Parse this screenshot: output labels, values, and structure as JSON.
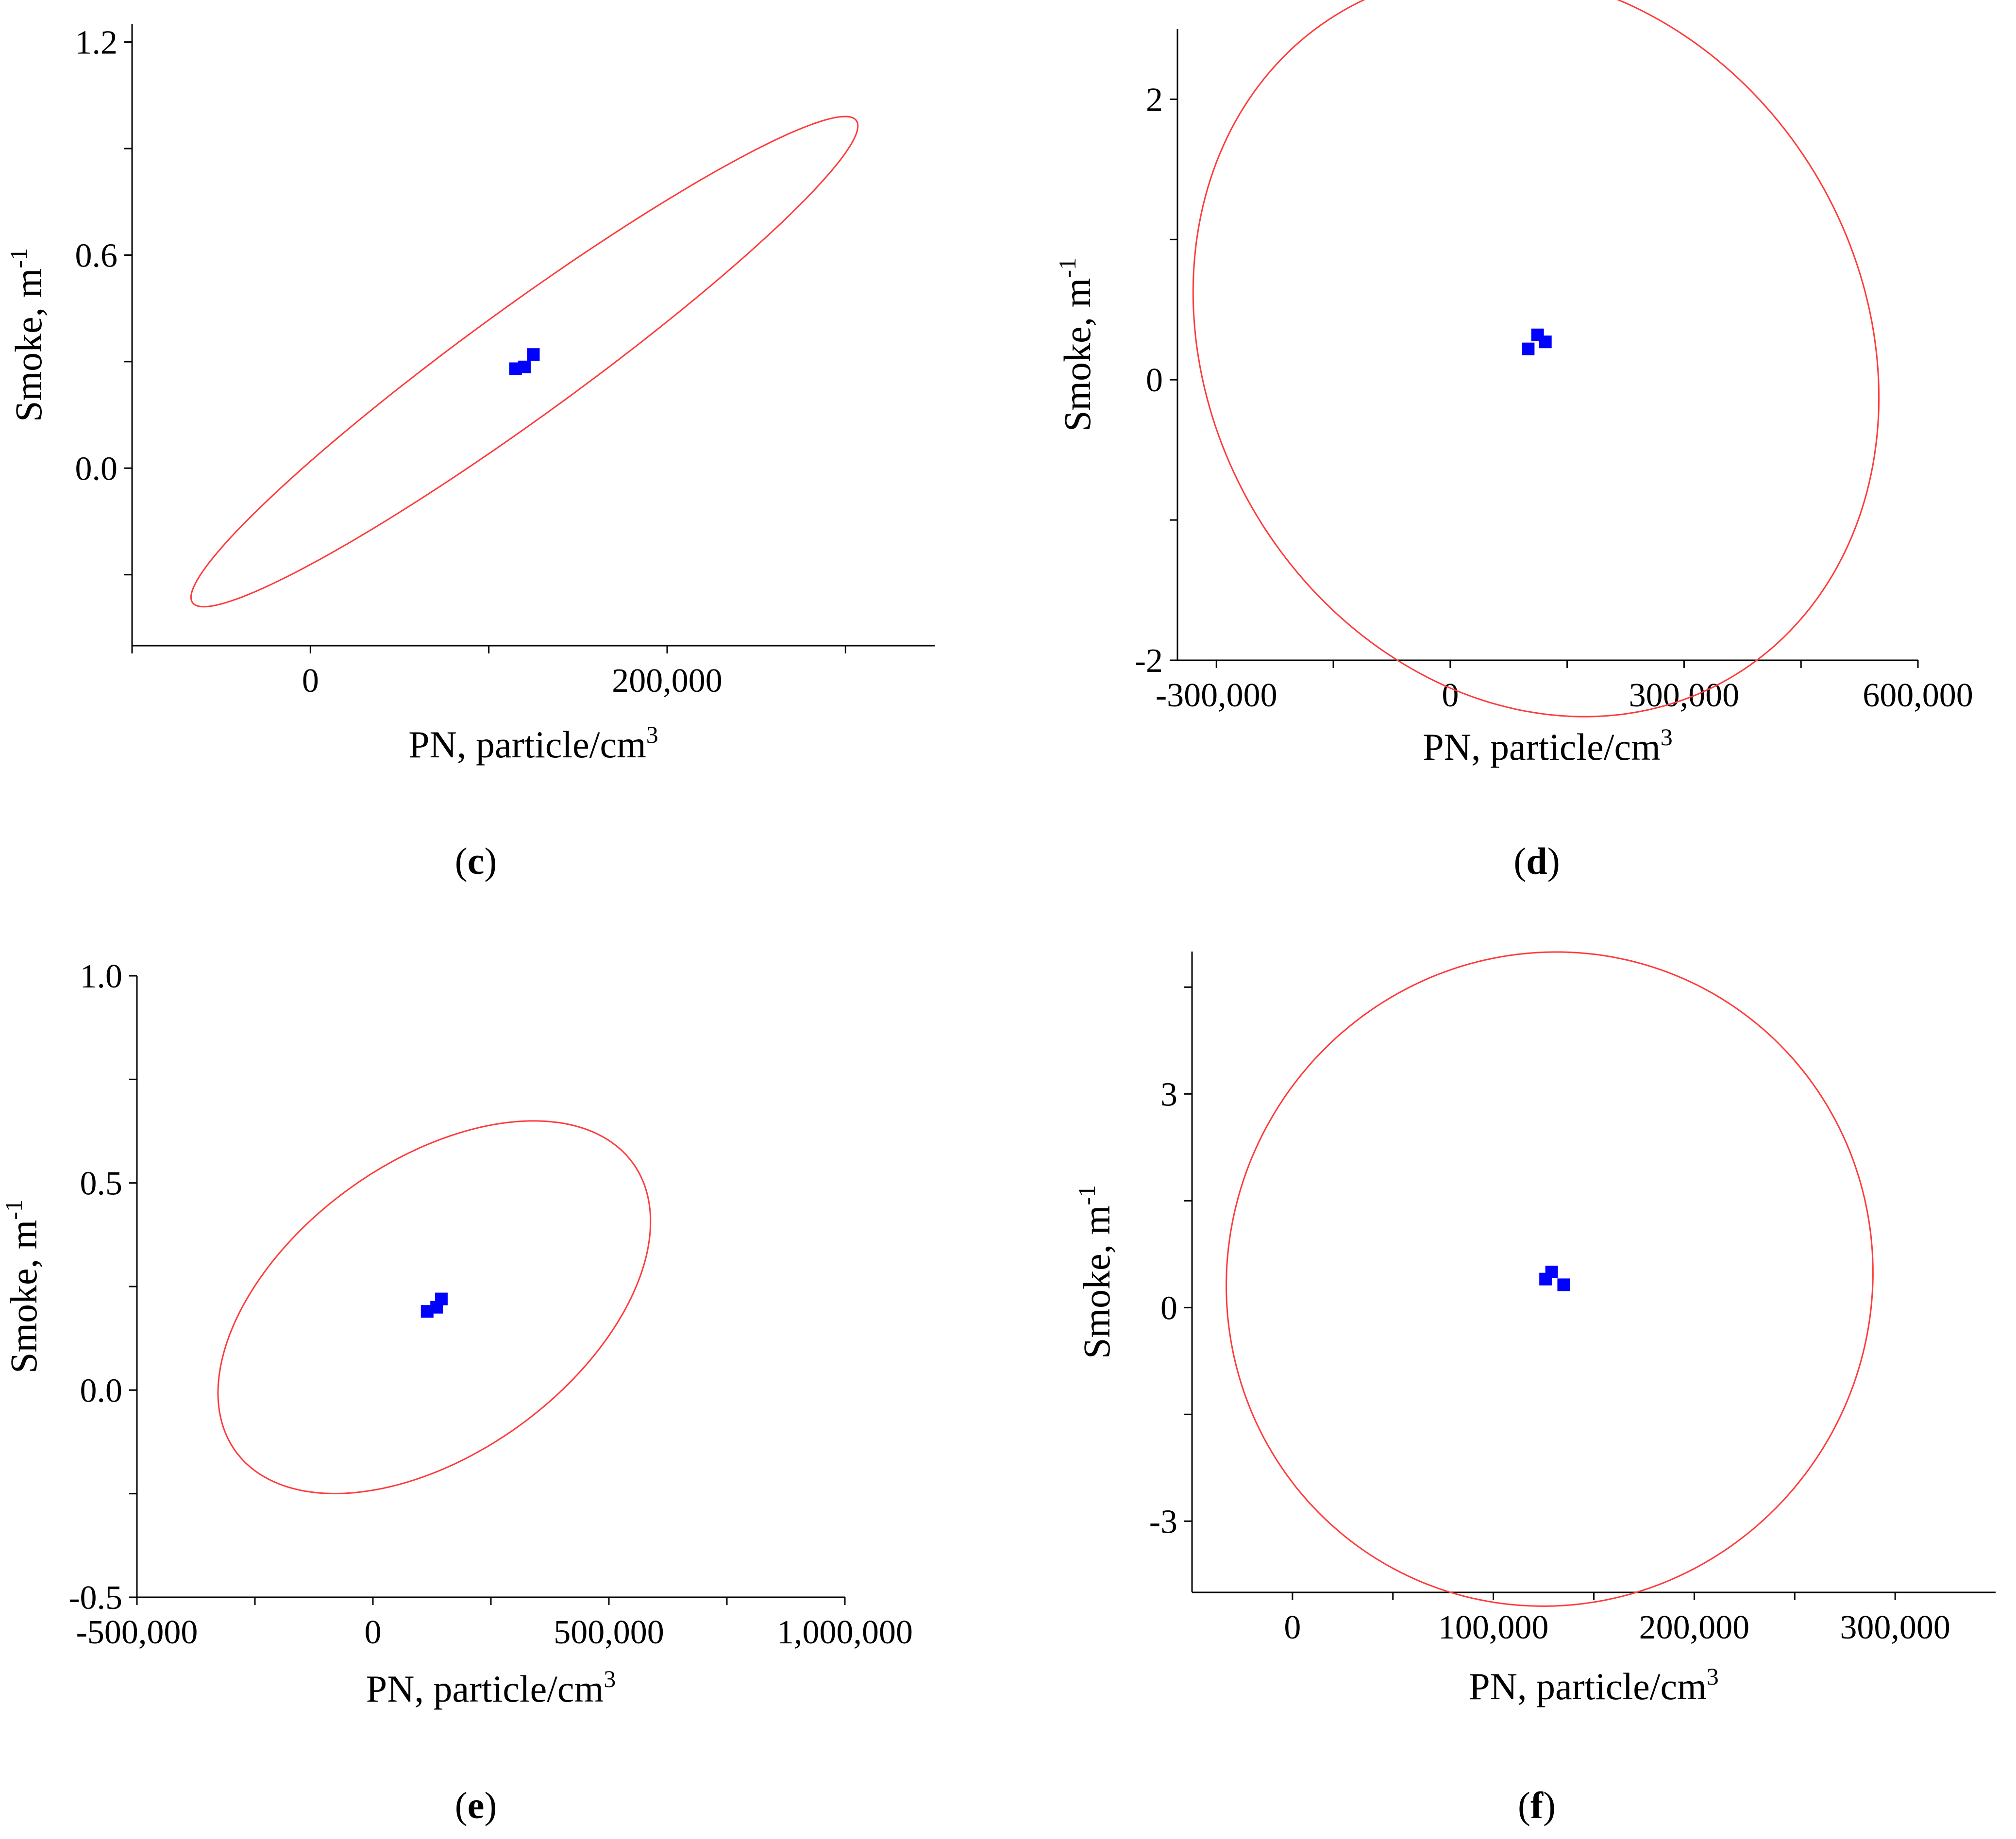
{
  "figure": {
    "colors": {
      "ellipse": "#ff3b3b",
      "points": "#0000ff",
      "axis": "#000000"
    }
  },
  "chart_data": [
    {
      "panel": "c",
      "type": "scatter",
      "caption": {
        "open": "(",
        "letter": "c",
        "close": ")"
      },
      "xlabel": "PN, particle/cm",
      "xlabel_sup": "3",
      "ylabel": "Smoke, m",
      "ylabel_sup": "-1",
      "xlim": [
        -100000,
        350000
      ],
      "ylim": [
        -0.5,
        1.25
      ],
      "xticks": [
        {
          "value": 0,
          "label": "0"
        },
        {
          "value": 200000,
          "label": "200,000"
        }
      ],
      "x_minor_ticks": [
        -100000,
        100000,
        300000
      ],
      "yticks": [
        {
          "value": 0.0,
          "label": "0.0"
        },
        {
          "value": 0.6,
          "label": "0.6"
        },
        {
          "value": 1.2,
          "label": "1.2"
        }
      ],
      "y_minor_ticks": [
        -0.3,
        0.3,
        0.9
      ],
      "ellipse": {
        "cx": 120000,
        "cy": 0.3,
        "rx": 230000,
        "ry": 0.07,
        "angle_deg": 36
      },
      "points": [
        [
          115000,
          0.28
        ],
        [
          120000,
          0.285
        ],
        [
          125000,
          0.32
        ]
      ]
    },
    {
      "panel": "d",
      "type": "scatter",
      "caption": {
        "open": "(",
        "letter": "d",
        "close": ")"
      },
      "xlabel": "PN, particle/cm",
      "xlabel_sup": "3",
      "ylabel": "Smoke, m",
      "ylabel_sup": "-1",
      "xlim": [
        -350000,
        600000
      ],
      "ylim": [
        -2.0,
        2.5
      ],
      "xticks": [
        {
          "value": -300000,
          "label": "-300,000"
        },
        {
          "value": 0,
          "label": "0"
        },
        {
          "value": 300000,
          "label": "300,000"
        },
        {
          "value": 600000,
          "label": "600,000"
        }
      ],
      "x_minor_ticks": [
        -150000,
        150000,
        450000
      ],
      "yticks": [
        {
          "value": -2,
          "label": "-2"
        },
        {
          "value": 0,
          "label": "0"
        },
        {
          "value": 2,
          "label": "2"
        }
      ],
      "y_minor_ticks": [
        -1,
        1
      ],
      "ellipse": {
        "cx": 110000,
        "cy": 0.25,
        "rx": 420000,
        "ry": 1.25,
        "angle_deg": 30
      },
      "points": [
        [
          100000,
          0.22
        ],
        [
          112000,
          0.32
        ],
        [
          122000,
          0.27
        ]
      ]
    },
    {
      "panel": "e",
      "type": "scatter",
      "caption": {
        "open": "(",
        "letter": "e",
        "close": ")"
      },
      "xlabel": "PN, particle/cm",
      "xlabel_sup": "3",
      "ylabel": "Smoke, m",
      "ylabel_sup": "-1",
      "xlim": [
        -500000,
        1000000
      ],
      "ylim": [
        -0.5,
        1.0
      ],
      "xticks": [
        {
          "value": -500000,
          "label": "-500,000"
        },
        {
          "value": 0,
          "label": "0"
        },
        {
          "value": 500000,
          "label": "500,000"
        },
        {
          "value": 1000000,
          "label": "1,000,000"
        }
      ],
      "x_minor_ticks": [
        -250000,
        250000,
        750000
      ],
      "yticks": [
        {
          "value": -0.5,
          "label": "-0.5"
        },
        {
          "value": 0.0,
          "label": "0.0"
        },
        {
          "value": 0.5,
          "label": "0.5"
        },
        {
          "value": 1.0,
          "label": "1.0"
        }
      ],
      "y_minor_ticks": [
        -0.25,
        0.25,
        0.75
      ],
      "ellipse": {
        "cx": 130000,
        "cy": 0.2,
        "rx": 520000,
        "ry": 0.16,
        "angle_deg": 36
      },
      "points": [
        [
          115000,
          0.19
        ],
        [
          135000,
          0.2
        ],
        [
          145000,
          0.22
        ]
      ]
    },
    {
      "panel": "f",
      "type": "scatter",
      "caption": {
        "open": "(",
        "letter": "f",
        "close": ")"
      },
      "xlabel": "PN, particle/cm",
      "xlabel_sup": "3",
      "ylabel": "Smoke, m",
      "ylabel_sup": "-1",
      "xlim": [
        -50000,
        350000
      ],
      "ylim": [
        -4.0,
        5.0
      ],
      "xticks": [
        {
          "value": 0,
          "label": "0"
        },
        {
          "value": 100000,
          "label": "100,000"
        },
        {
          "value": 200000,
          "label": "200,000"
        },
        {
          "value": 300000,
          "label": "300,000"
        }
      ],
      "x_minor_ticks": [
        50000,
        150000,
        250000
      ],
      "yticks": [
        {
          "value": -3,
          "label": "-3"
        },
        {
          "value": 0,
          "label": "0"
        },
        {
          "value": 3,
          "label": "3"
        }
      ],
      "y_minor_ticks": [
        -1.5,
        1.5,
        4.5
      ],
      "ellipse": {
        "cx": 128000,
        "cy": 0.4,
        "rx": 160000,
        "ry": 2.1,
        "angle_deg": -30
      },
      "points": [
        [
          126000,
          0.4
        ],
        [
          129000,
          0.5
        ],
        [
          135000,
          0.32
        ]
      ]
    }
  ]
}
